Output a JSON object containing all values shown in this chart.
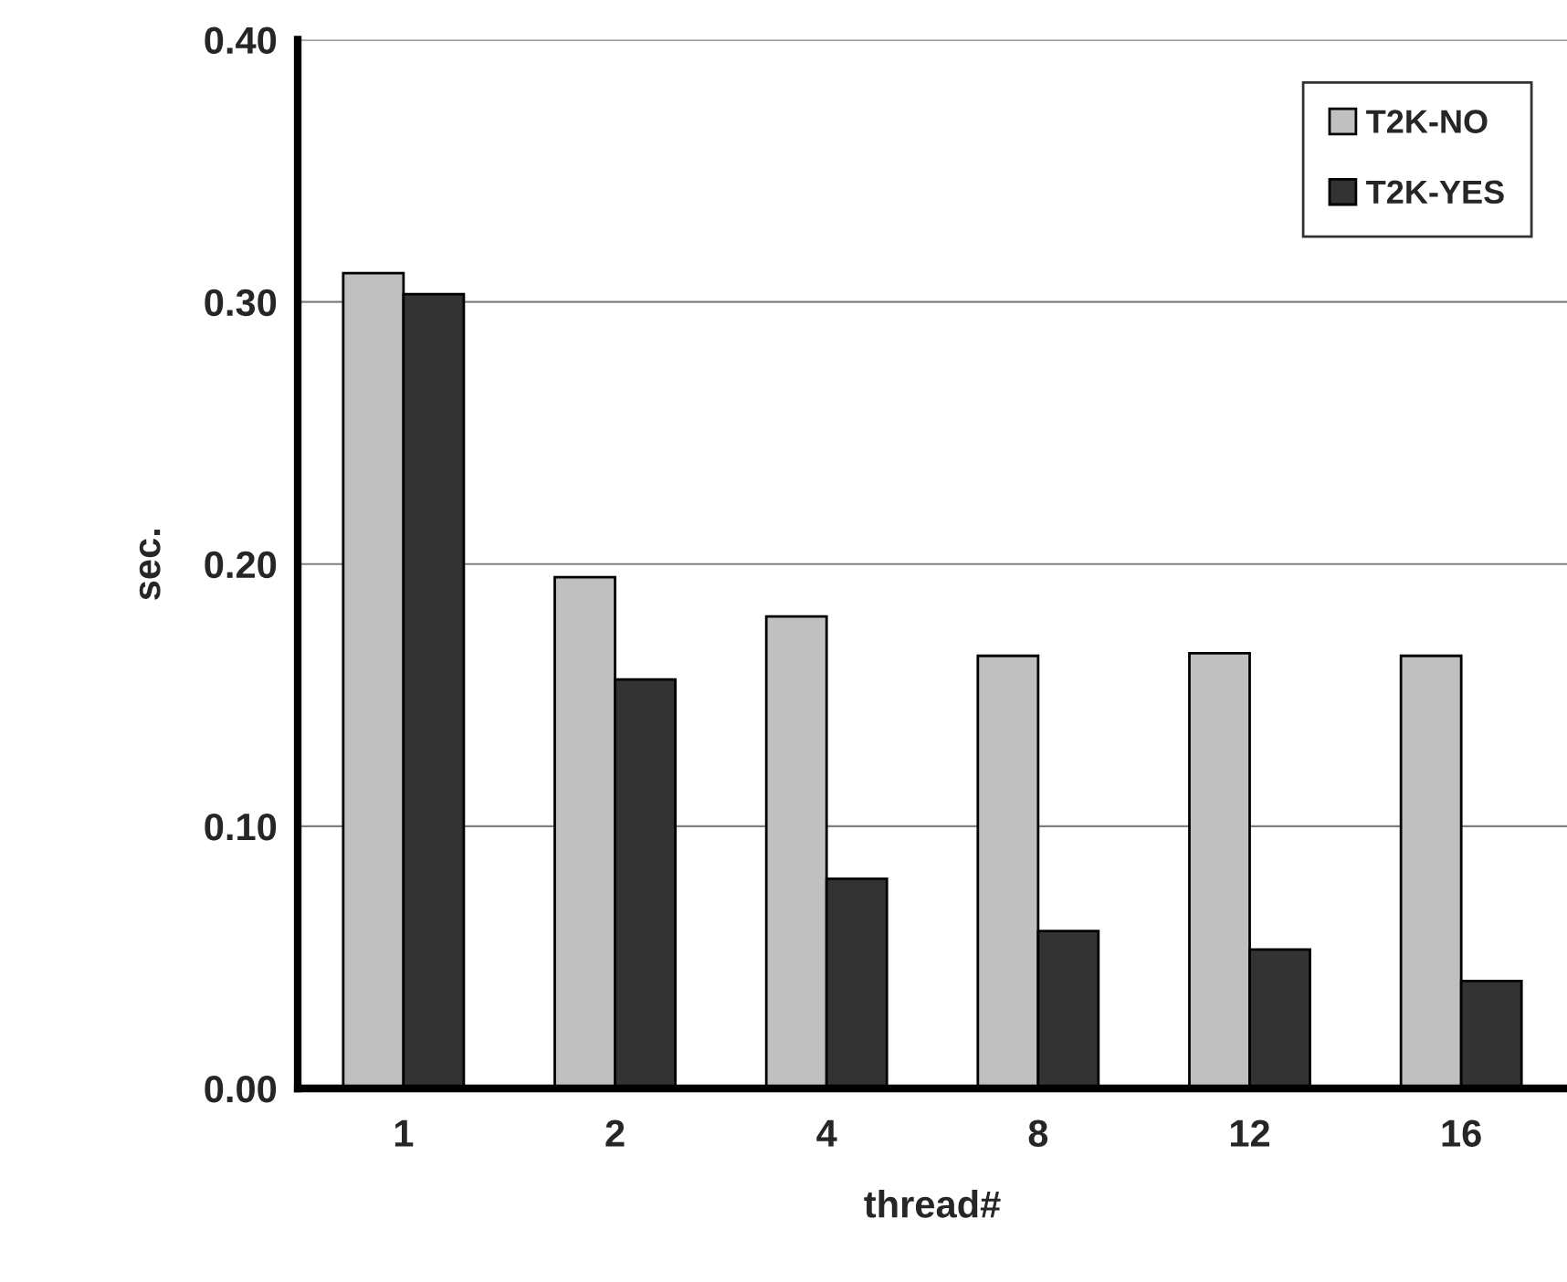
{
  "chart_data": {
    "type": "bar",
    "xlabel": "thread#",
    "ylabel": "sec.",
    "categories": [
      "1",
      "2",
      "4",
      "8",
      "12",
      "16"
    ],
    "series": [
      {
        "name": "T2K-NO",
        "color": "#c0c0c0",
        "values": [
          0.311,
          0.195,
          0.18,
          0.165,
          0.166,
          0.165
        ]
      },
      {
        "name": "T2K-YES",
        "color": "#333333",
        "values": [
          0.303,
          0.156,
          0.08,
          0.06,
          0.053,
          0.041
        ]
      }
    ],
    "ylim": [
      0,
      0.4
    ],
    "yticks": [
      {
        "value": 0,
        "label": "0.00"
      },
      {
        "value": 0.1,
        "label": "0.10"
      },
      {
        "value": 0.2,
        "label": "0.20"
      },
      {
        "value": 0.3,
        "label": "0.30"
      },
      {
        "value": 0.4,
        "label": "0.40"
      }
    ],
    "grid": "y",
    "legend": "top right"
  }
}
